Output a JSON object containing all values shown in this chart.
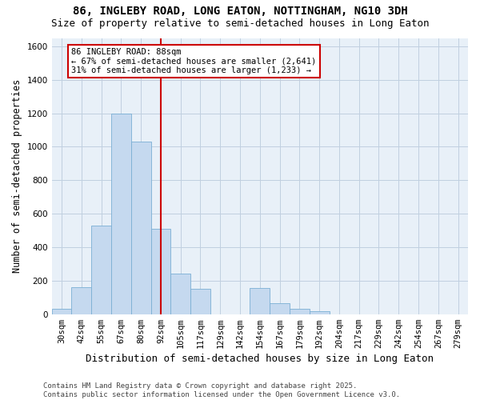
{
  "title_line1": "86, INGLEBY ROAD, LONG EATON, NOTTINGHAM, NG10 3DH",
  "title_line2": "Size of property relative to semi-detached houses in Long Eaton",
  "xlabel": "Distribution of semi-detached houses by size in Long Eaton",
  "ylabel": "Number of semi-detached properties",
  "bin_labels": [
    "30sqm",
    "42sqm",
    "55sqm",
    "67sqm",
    "80sqm",
    "92sqm",
    "105sqm",
    "117sqm",
    "129sqm",
    "142sqm",
    "154sqm",
    "167sqm",
    "179sqm",
    "192sqm",
    "204sqm",
    "217sqm",
    "229sqm",
    "242sqm",
    "254sqm",
    "267sqm",
    "279sqm"
  ],
  "bar_values": [
    30,
    160,
    530,
    1200,
    1030,
    510,
    240,
    150,
    0,
    0,
    155,
    65,
    30,
    20,
    0,
    0,
    0,
    0,
    0,
    0,
    0
  ],
  "bar_color": "#c5d9ef",
  "bar_edge_color": "#7aafd4",
  "vline_x_index": 5,
  "vline_color": "#cc0000",
  "annotation_text": "86 INGLEBY ROAD: 88sqm\n← 67% of semi-detached houses are smaller (2,641)\n31% of semi-detached houses are larger (1,233) →",
  "annotation_box_color": "#ffffff",
  "annotation_box_edge": "#cc0000",
  "ylim": [
    0,
    1650
  ],
  "yticks": [
    0,
    200,
    400,
    600,
    800,
    1000,
    1200,
    1400,
    1600
  ],
  "grid_color": "#c0d0e0",
  "bg_color": "#e8f0f8",
  "footer_text": "Contains HM Land Registry data © Crown copyright and database right 2025.\nContains public sector information licensed under the Open Government Licence v3.0.",
  "title_fontsize": 10,
  "subtitle_fontsize": 9,
  "axis_label_fontsize": 8.5,
  "tick_fontsize": 7.5,
  "annotation_fontsize": 7.5,
  "footer_fontsize": 6.5
}
